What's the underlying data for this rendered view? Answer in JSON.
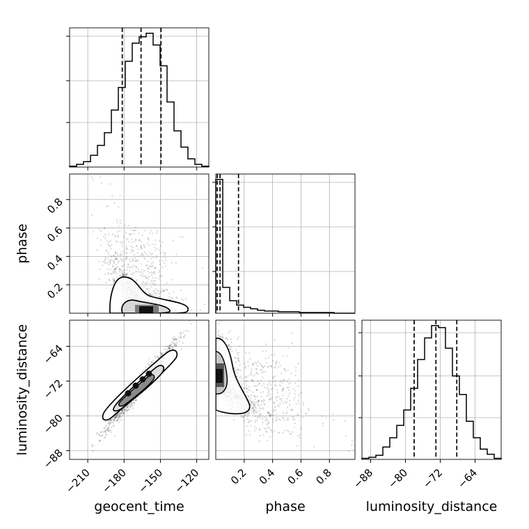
{
  "chart_data": {
    "type": "corner",
    "parameters": [
      "geocent_time",
      "phase",
      "luminosity_distance"
    ],
    "xlabels": [
      "geocent_time",
      "phase",
      "luminosity_distance"
    ],
    "ylabels": [
      "phase",
      "luminosity_distance"
    ],
    "grid": true,
    "ranges": {
      "geocent_time": [
        -225,
        -110
      ],
      "phase": [
        0.0,
        0.98
      ],
      "luminosity_distance": [
        -90,
        -58
      ]
    },
    "ticks": {
      "geocent_time": [
        -210,
        -180,
        -150,
        -120
      ],
      "phase_x": [
        0.2,
        0.4,
        0.6,
        0.8
      ],
      "phase_y": [
        0.2,
        0.4,
        0.6,
        0.8
      ],
      "luminosity_distance_x": [
        -88,
        -80,
        -72,
        -64
      ],
      "luminosity_distance_y": [
        -64,
        -72,
        -80,
        -88
      ]
    },
    "tick_labels": {
      "geocent_time": [
        "−210",
        "−180",
        "−150",
        "−120"
      ],
      "phase_x": [
        "0.2",
        "0.4",
        "0.6",
        "0.8"
      ],
      "phase_y": [
        "0.2",
        "0.4",
        "0.6",
        "0.8"
      ],
      "luminosity_distance_x": [
        "−88",
        "−80",
        "−72",
        "−64"
      ],
      "luminosity_distance_y": [
        "−64",
        "−72",
        "−80",
        "−88"
      ]
    },
    "quantiles": {
      "geocent_time": [
        -181.5,
        -166,
        -149.5
      ],
      "phase": [
        0.01,
        0.03,
        0.16
      ],
      "luminosity_distance": [
        -78,
        -73,
        -68.2
      ]
    },
    "histograms": {
      "geocent_time": {
        "edges": [
          -225,
          -219.25,
          -213.5,
          -207.75,
          -202,
          -196.25,
          -190.5,
          -184.75,
          -179,
          -173.25,
          -167.5,
          -161.75,
          -156,
          -150.25,
          -144.5,
          -138.75,
          -133,
          -127.25,
          -121.5,
          -115.75,
          -110
        ],
        "counts": [
          1,
          3,
          6,
          13,
          24,
          38,
          63,
          88,
          117,
          137,
          144,
          148,
          135,
          112,
          72,
          40,
          22,
          9,
          3,
          1
        ]
      },
      "phase": {
        "edges": [
          0.0,
          0.049,
          0.098,
          0.147,
          0.196,
          0.245,
          0.294,
          0.343,
          0.392,
          0.441,
          0.49,
          0.539,
          0.588,
          0.637,
          0.686,
          0.735,
          0.784,
          0.833,
          0.882,
          0.931,
          0.98
        ],
        "counts": [
          181,
          35,
          17,
          11,
          8,
          6,
          4,
          3,
          3,
          2,
          2,
          2,
          1,
          1,
          1,
          1,
          1,
          0,
          0,
          0
        ]
      },
      "luminosity_distance": {
        "edges": [
          -90,
          -88.4,
          -86.8,
          -85.2,
          -83.6,
          -82,
          -80.4,
          -78.8,
          -77.2,
          -75.6,
          -74,
          -72.4,
          -70.8,
          -69.2,
          -67.6,
          -66,
          -64.4,
          -62.8,
          -61.2,
          -59.6,
          -58
        ],
        "counts": [
          1,
          2,
          4,
          12,
          21,
          33,
          48,
          69,
          97,
          118,
          130,
          128,
          108,
          81,
          63,
          37,
          21,
          10,
          5,
          1
        ]
      }
    }
  }
}
